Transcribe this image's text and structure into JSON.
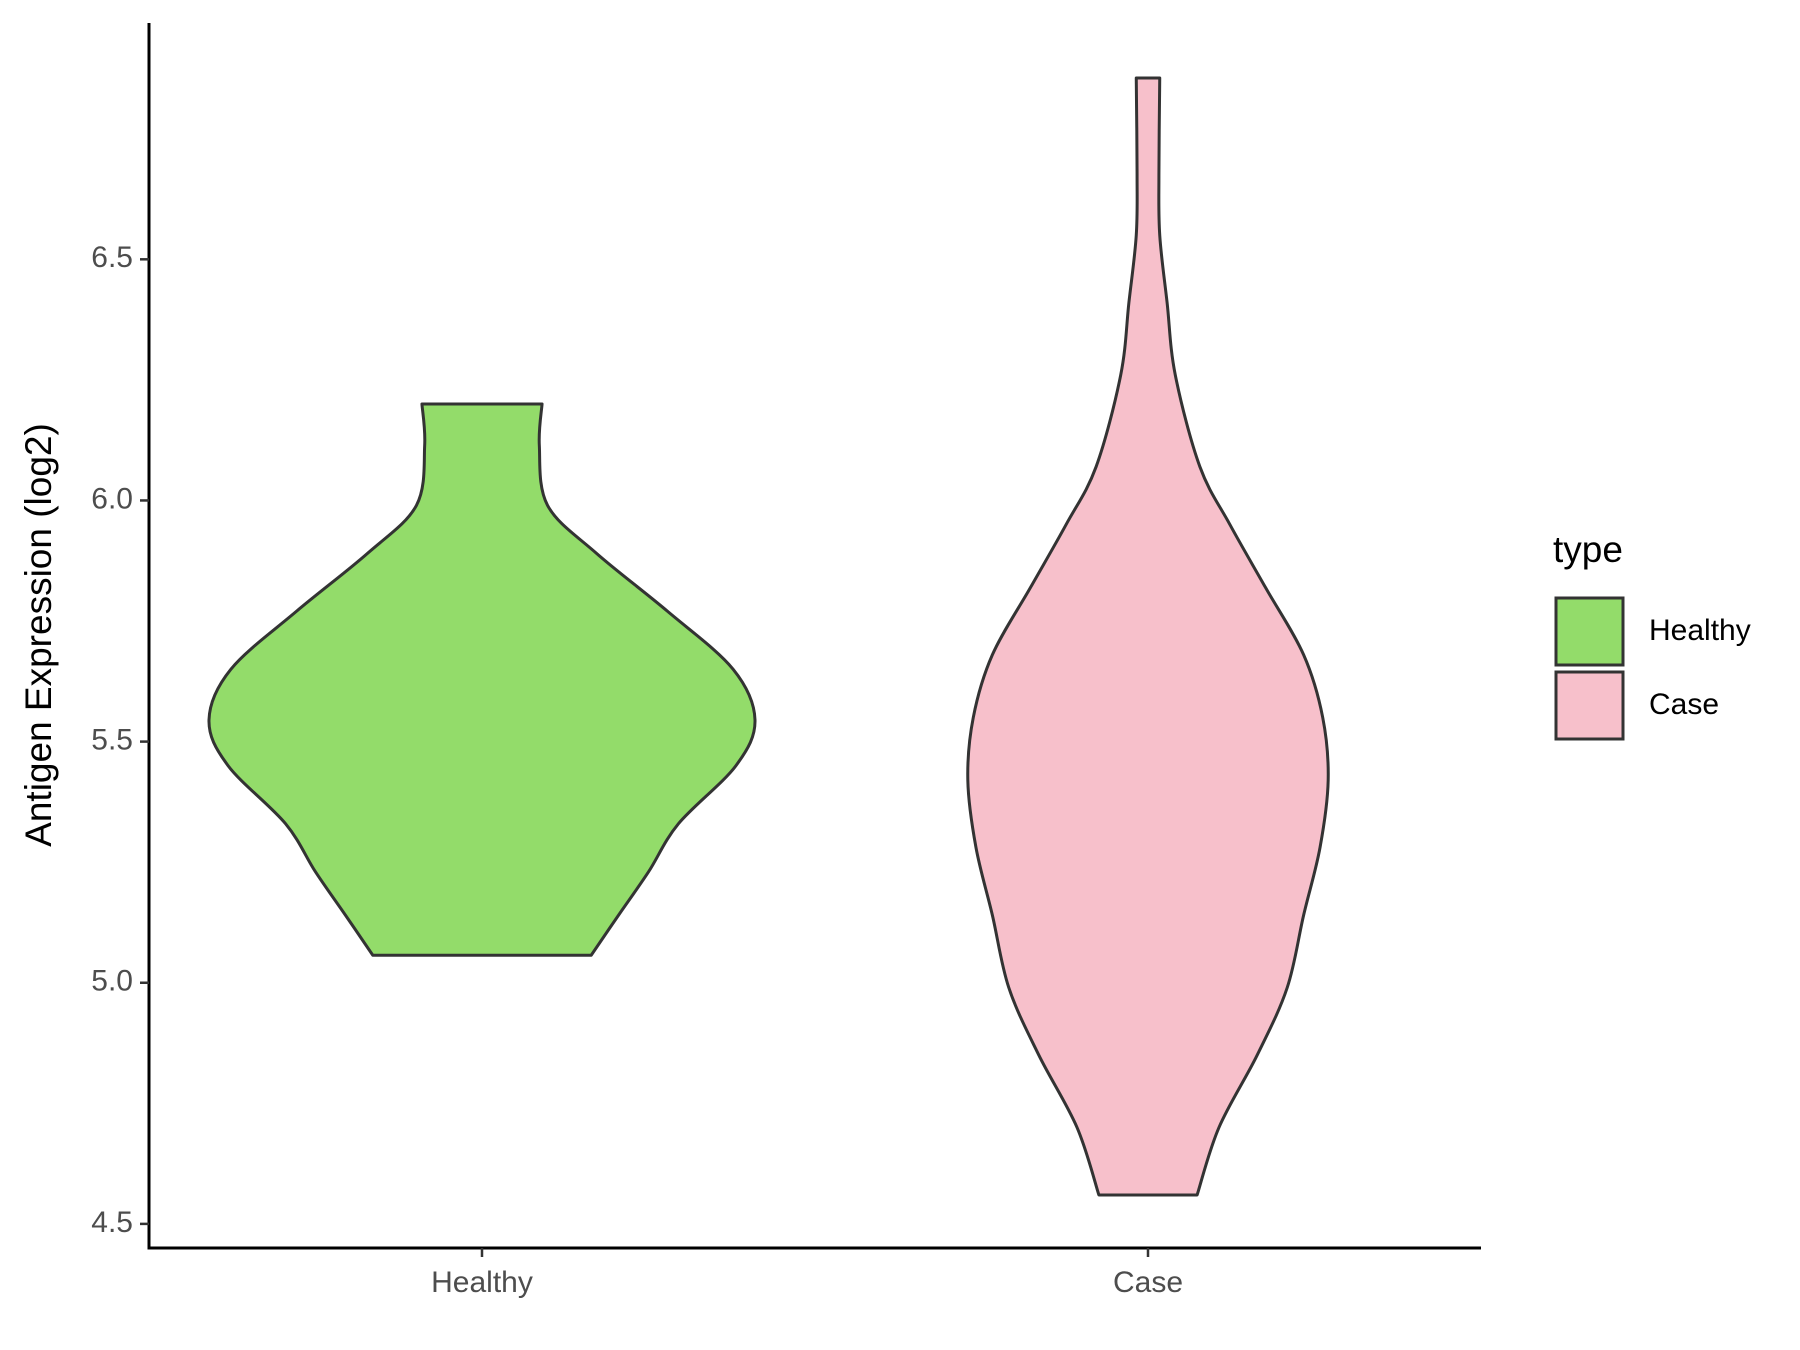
{
  "chart_data": {
    "type": "violin",
    "y_label": "Antigen Expression (log2)",
    "legend_title": "type",
    "legend": "right",
    "categories": [
      "Healthy",
      "Case"
    ],
    "ylim": [
      4.45,
      6.99
    ],
    "yticks": [
      4.5,
      {
        "value": 5.0,
        "label": "5.0"
      },
      5.5,
      {
        "value": 6.0,
        "label": "6.0"
      },
      6.5
    ],
    "series": [
      {
        "name": "Healthy",
        "color": "#93dc6a",
        "y": [
          5.057,
          5.14,
          5.23,
          5.33,
          5.45,
          5.545,
          5.65,
          5.77,
          5.89,
          5.99,
          6.114,
          6.2
        ],
        "width": [
          0.4,
          0.5,
          0.61,
          0.72,
          0.93,
          1.0,
          0.92,
          0.68,
          0.42,
          0.24,
          0.21,
          0.22
        ]
      },
      {
        "name": "Case",
        "color": "#f7c0cb",
        "y": [
          4.56,
          4.7,
          4.85,
          4.99,
          5.14,
          5.28,
          5.42,
          5.55,
          5.68,
          5.82,
          5.95,
          6.07,
          6.26,
          6.41,
          6.55,
          6.676,
          6.876
        ],
        "width": [
          0.18,
          0.26,
          0.4,
          0.51,
          0.57,
          0.63,
          0.66,
          0.64,
          0.57,
          0.43,
          0.3,
          0.19,
          0.1,
          0.07,
          0.043,
          0.04,
          0.043
        ]
      }
    ]
  }
}
